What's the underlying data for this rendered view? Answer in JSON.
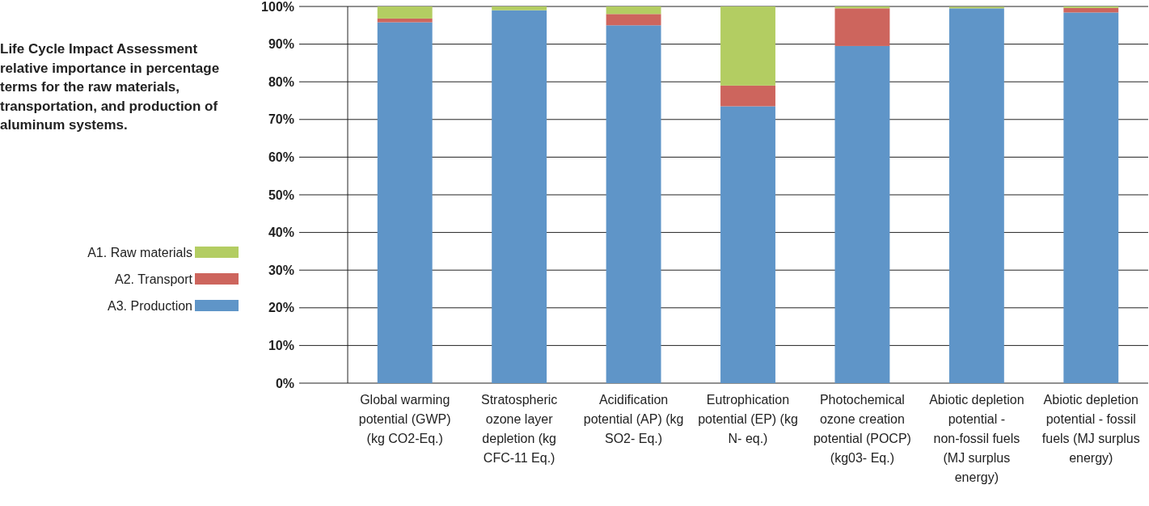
{
  "chart_data": {
    "type": "bar",
    "title": "Life Cycle Impact Assessment relative importance in percentage terms for the raw materials, transportation, and production of aluminum systems.",
    "categories": [
      "Global warming potential (GWP) (kg CO2-Eq.)",
      "Stratospheric ozone layer depletion (kg CFC-11 Eq.)",
      "Acidification potential (AP) (kg SO2- Eq.)",
      "Eutrophication potential (EP) (kg N- eq.)",
      "Photochemical ozone creation potential (POCP) (kg03- Eq.)",
      "Abiotic depletion potential - non-fossil fuels (MJ surplus energy)",
      "Abiotic depletion potential - fossil fuels (MJ surplus energy)"
    ],
    "series": [
      {
        "name": "A3. Production",
        "color": "#5f95c8",
        "values": [
          95.8,
          99,
          95,
          73.5,
          89.5,
          99.5,
          98.4
        ]
      },
      {
        "name": "A2. Transport",
        "color": "#cd655d",
        "values": [
          1,
          0,
          3,
          5.5,
          10,
          null,
          1.2
        ]
      },
      {
        "name": "A1. Raw materials",
        "color": "#b3cd62",
        "values": [
          3.2,
          1,
          2,
          21,
          0.5,
          0.4,
          0.4
        ]
      }
    ],
    "stacked": true,
    "ylim": [
      0,
      100
    ],
    "yticks": [
      {
        "value": 0,
        "label": "0%"
      },
      {
        "value": 10,
        "label": "10%"
      },
      {
        "value": 20,
        "label": "20%"
      },
      {
        "value": 30,
        "label": "30%"
      },
      {
        "value": 40,
        "label": "40%"
      },
      {
        "value": 50,
        "label": "50%"
      },
      {
        "value": 60,
        "label": "60%"
      },
      {
        "value": 70,
        "label": "70%"
      },
      {
        "value": 80,
        "label": "80%"
      },
      {
        "value": 90,
        "label": "90%"
      },
      {
        "value": 100,
        "label": "100%"
      }
    ],
    "grid": "y",
    "legend": "left"
  }
}
